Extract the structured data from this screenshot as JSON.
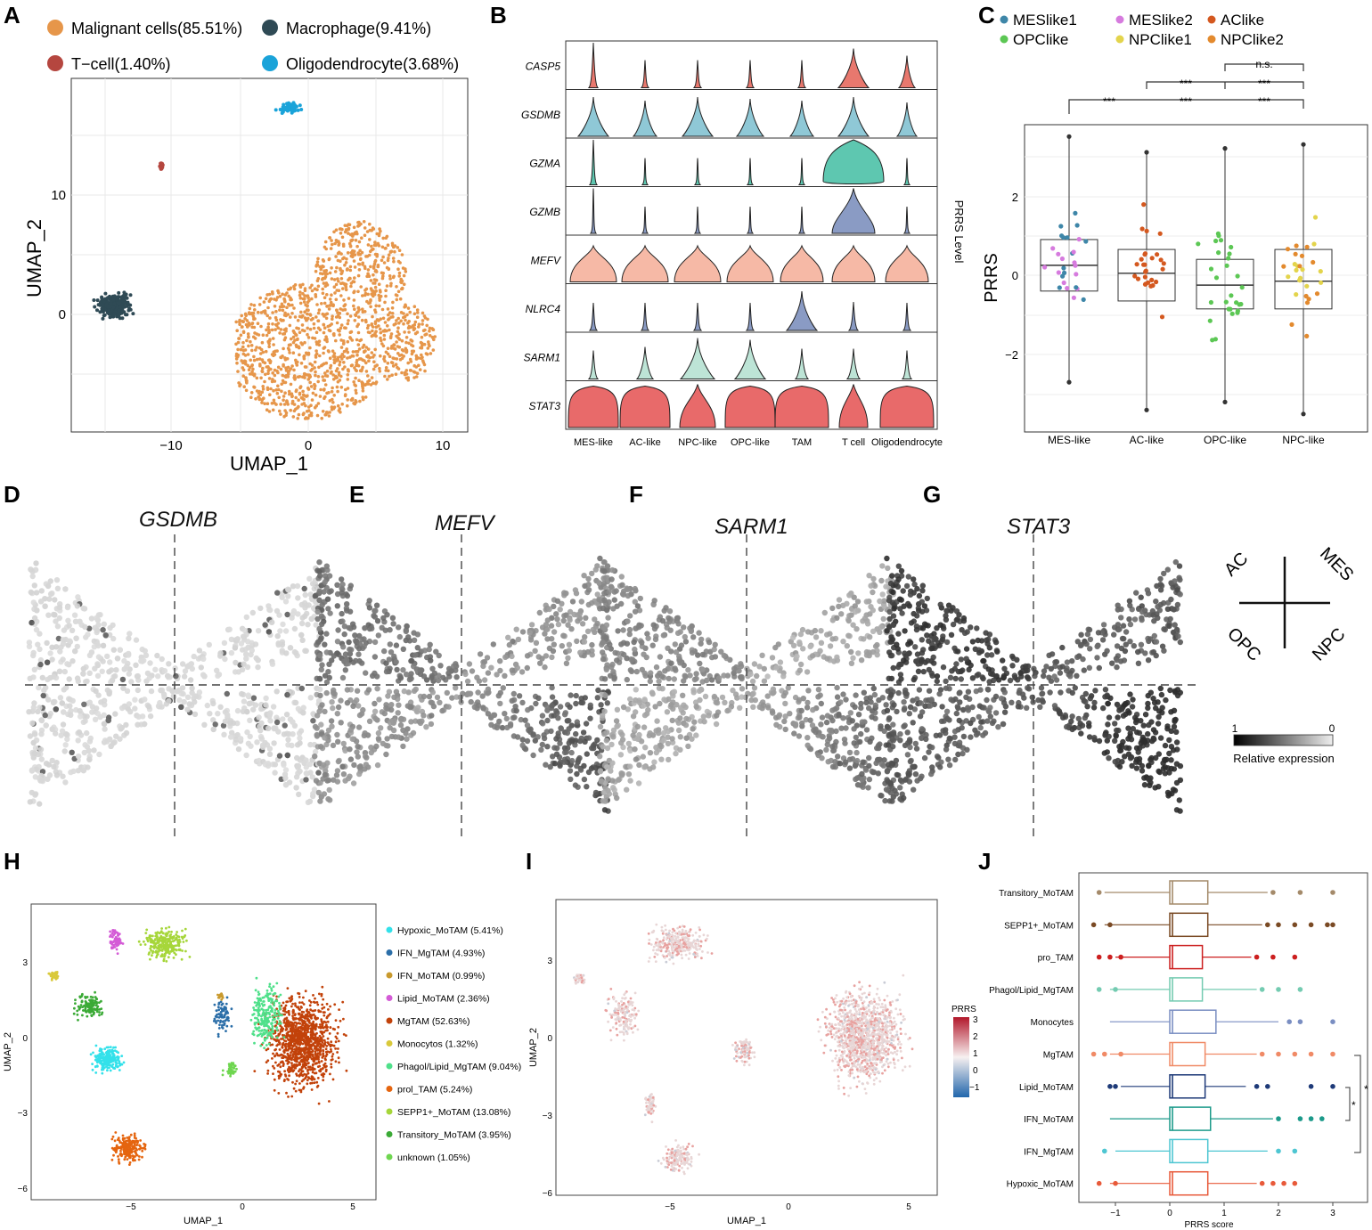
{
  "labels": [
    "A",
    "B",
    "C",
    "D",
    "E",
    "F",
    "G",
    "H",
    "I",
    "J"
  ],
  "panelA": {
    "legend": [
      {
        "label": "Malignant cells(85.51%)",
        "color": "#E6964A"
      },
      {
        "label": "Macrophage(9.41%)",
        "color": "#2F4A55"
      },
      {
        "label": "T−cell(1.40%)",
        "color": "#B5463F"
      },
      {
        "label": "Oligodendrocyte(3.68%)",
        "color": "#1AA3D9"
      }
    ],
    "xlabel": "UMAP_1",
    "ylabel": "UMAP_2",
    "xticks": [
      "−10",
      "0",
      "10"
    ],
    "yticks": [
      "10",
      "0"
    ]
  },
  "panelB": {
    "genes": [
      "CASP5",
      "GSDMB",
      "GZMA",
      "GZMB",
      "MEFV",
      "NLRC4",
      "SARM1",
      "STAT3"
    ],
    "groups": [
      "MES-like",
      "AC-like",
      "NPC-like",
      "OPC-like",
      "TAM",
      "T cell",
      "Oligodendrocyte"
    ],
    "side_label": "PRRS Level"
  },
  "panelC": {
    "legend": [
      {
        "label": "MESlike1",
        "color": "#3E86A8"
      },
      {
        "label": "MESlike2",
        "color": "#D67BDE"
      },
      {
        "label": "AClike",
        "color": "#D4581F"
      },
      {
        "label": "OPClike",
        "color": "#5CC754"
      },
      {
        "label": "NPClike1",
        "color": "#E3D44C"
      },
      {
        "label": "NPClike2",
        "color": "#E38A2E"
      }
    ],
    "ylabel": "PRRS",
    "yticks": [
      "2",
      "0",
      "−2"
    ],
    "categories": [
      "MES-like",
      "AC-like",
      "OPC-like",
      "NPC-like"
    ],
    "sig": [
      "n.s.",
      "***",
      "***",
      "***",
      "***",
      "***"
    ]
  },
  "panelDG": {
    "genes": [
      "GSDMB",
      "MEFV",
      "SARM1",
      "STAT3"
    ],
    "quadrants": [
      "AC",
      "MES",
      "OPC",
      "NPC"
    ],
    "scale_max": "1",
    "scale_min": "0",
    "scale_label": "Relative expression"
  },
  "panelH": {
    "legend": [
      {
        "label": "Hypoxic_MoTAM (5.41%)",
        "color": "#33E1EA"
      },
      {
        "label": "IFN_MgTAM (4.93%)",
        "color": "#2B6EA8"
      },
      {
        "label": "IFN_MoTAM (0.99%)",
        "color": "#C99A2E"
      },
      {
        "label": "Lipid_MoTAM (2.36%)",
        "color": "#D45BD6"
      },
      {
        "label": "MgTAM (52.63%)",
        "color": "#C2420A"
      },
      {
        "label": "Monocytos (1.32%)",
        "color": "#D9C93A"
      },
      {
        "label": "Phagol/Lipid_MgTAM (9.04%)",
        "color": "#4FE08A"
      },
      {
        "label": "prol_TAM (5.24%)",
        "color": "#E5650F"
      },
      {
        "label": "SEPP1+_MoTAM (13.08%)",
        "color": "#A6D63A"
      },
      {
        "label": "Transitory_MoTAM (3.95%)",
        "color": "#3BAA36"
      },
      {
        "label": "unknown (1.05%)",
        "color": "#6FD650"
      }
    ],
    "xlabel": "UMAP_1",
    "ylabel": "UMAP_2",
    "xticks": [
      "−5",
      "0",
      "5"
    ],
    "yticks": [
      "3",
      "0",
      "−3",
      "−6"
    ]
  },
  "panelI": {
    "xlabel": "UMAP_1",
    "ylabel": "UMAP_2",
    "xticks": [
      "−5",
      "0",
      "5"
    ],
    "yticks": [
      "3",
      "0",
      "−3",
      "−6"
    ],
    "scale_title": "PRRS",
    "scale_ticks": [
      "3",
      "2",
      "1",
      "0",
      "−1"
    ]
  },
  "panelJ": {
    "categories": [
      "Transitory_MoTAM",
      "SEPP1+_MoTAM",
      "pro_TAM",
      "Phagol/Lipid_MgTAM",
      "Monocytes",
      "MgTAM",
      "Lipid_MoTAM",
      "IFN_MoTAM",
      "IFN_MgTAM",
      "Hypoxic_MoTAM"
    ],
    "colors": [
      "#A48A6A",
      "#7A4A24",
      "#CC1F1F",
      "#74CBB1",
      "#7A8EC2",
      "#F08A66",
      "#1E3A78",
      "#1C9A8A",
      "#4EC6D2",
      "#E85A3A"
    ],
    "xlabel": "PRRS score",
    "xticks": [
      "−1",
      "0",
      "1",
      "2",
      "3"
    ],
    "sig": [
      "*",
      "*"
    ]
  }
}
